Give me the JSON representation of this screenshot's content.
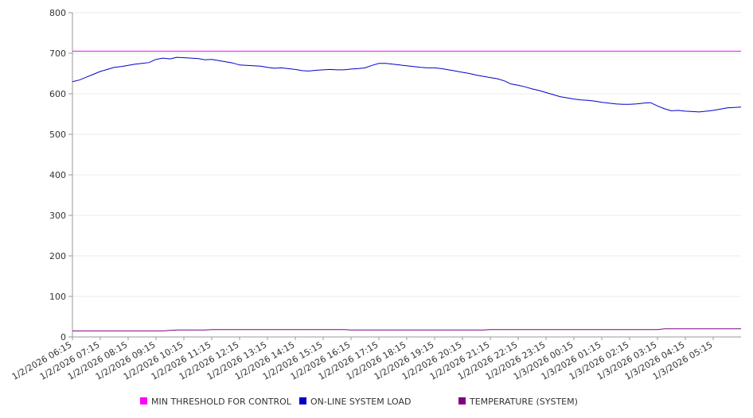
{
  "chart_data": {
    "type": "line",
    "title": "",
    "xlabel": "",
    "ylabel": "",
    "ylim": [
      0,
      800
    ],
    "y_ticks": [
      0,
      100,
      200,
      300,
      400,
      500,
      600,
      700,
      800
    ],
    "grid": true,
    "legend_position": "bottom",
    "x_ticks": [
      "1/2/2026 06:15",
      "1/2/2026 07:15",
      "1/2/2026 08:15",
      "1/2/2026 09:15",
      "1/2/2026 10:15",
      "1/2/2026 11:15",
      "1/2/2026 12:15",
      "1/2/2026 13:15",
      "1/2/2026 14:15",
      "1/2/2026 15:15",
      "1/2/2026 16:15",
      "1/2/2026 17:15",
      "1/2/2026 18:15",
      "1/2/2026 19:15",
      "1/2/2026 20:15",
      "1/2/2026 21:15",
      "1/2/2026 22:15",
      "1/2/2026 23:15",
      "1/3/2026 00:15",
      "1/3/2026 01:15",
      "1/3/2026 02:15",
      "1/3/2026 03:15",
      "1/3/2026 04:15",
      "1/3/2026 05:15"
    ],
    "x_range": [
      "1/2/2026 06:15",
      "1/3/2026 06:15"
    ],
    "series": [
      {
        "name": "MIN THRESHOLD FOR CONTROL",
        "color": "#ff00ff",
        "points": [
          [
            "1/2/2026 06:15",
            705
          ],
          [
            "1/3/2026 06:15",
            705
          ]
        ]
      },
      {
        "name": "ON-LINE SYSTEM LOAD",
        "color": "#0000cc",
        "points": [
          [
            "1/2/2026 06:15",
            630
          ],
          [
            "1/2/2026 06:30",
            634
          ],
          [
            "1/2/2026 06:45",
            641
          ],
          [
            "1/2/2026 07:00",
            648
          ],
          [
            "1/2/2026 07:15",
            655
          ],
          [
            "1/2/2026 07:30",
            660
          ],
          [
            "1/2/2026 07:45",
            665
          ],
          [
            "1/2/2026 08:00",
            667
          ],
          [
            "1/2/2026 08:15",
            670
          ],
          [
            "1/2/2026 08:30",
            673
          ],
          [
            "1/2/2026 08:45",
            675
          ],
          [
            "1/2/2026 09:00",
            677
          ],
          [
            "1/2/2026 09:15",
            685
          ],
          [
            "1/2/2026 09:30",
            688
          ],
          [
            "1/2/2026 09:45",
            686
          ],
          [
            "1/2/2026 10:00",
            690
          ],
          [
            "1/2/2026 10:15",
            689
          ],
          [
            "1/2/2026 10:30",
            688
          ],
          [
            "1/2/2026 10:45",
            687
          ],
          [
            "1/2/2026 11:00",
            684
          ],
          [
            "1/2/2026 11:15",
            685
          ],
          [
            "1/2/2026 11:30",
            682
          ],
          [
            "1/2/2026 11:45",
            679
          ],
          [
            "1/2/2026 12:00",
            676
          ],
          [
            "1/2/2026 12:15",
            671
          ],
          [
            "1/2/2026 12:30",
            670
          ],
          [
            "1/2/2026 12:45",
            669
          ],
          [
            "1/2/2026 13:00",
            668
          ],
          [
            "1/2/2026 13:15",
            665
          ],
          [
            "1/2/2026 13:30",
            663
          ],
          [
            "1/2/2026 13:45",
            664
          ],
          [
            "1/2/2026 14:00",
            662
          ],
          [
            "1/2/2026 14:15",
            660
          ],
          [
            "1/2/2026 14:30",
            657
          ],
          [
            "1/2/2026 14:45",
            656
          ],
          [
            "1/2/2026 15:00",
            658
          ],
          [
            "1/2/2026 15:15",
            659
          ],
          [
            "1/2/2026 15:30",
            660
          ],
          [
            "1/2/2026 15:45",
            659
          ],
          [
            "1/2/2026 16:00",
            659
          ],
          [
            "1/2/2026 16:15",
            661
          ],
          [
            "1/2/2026 16:30",
            662
          ],
          [
            "1/2/2026 16:45",
            664
          ],
          [
            "1/2/2026 17:00",
            670
          ],
          [
            "1/2/2026 17:15",
            675
          ],
          [
            "1/2/2026 17:30",
            675
          ],
          [
            "1/2/2026 17:45",
            673
          ],
          [
            "1/2/2026 18:00",
            671
          ],
          [
            "1/2/2026 18:15",
            669
          ],
          [
            "1/2/2026 18:30",
            667
          ],
          [
            "1/2/2026 18:45",
            665
          ],
          [
            "1/2/2026 19:00",
            664
          ],
          [
            "1/2/2026 19:15",
            664
          ],
          [
            "1/2/2026 19:30",
            662
          ],
          [
            "1/2/2026 19:45",
            659
          ],
          [
            "1/2/2026 20:00",
            656
          ],
          [
            "1/2/2026 20:15",
            653
          ],
          [
            "1/2/2026 20:30",
            650
          ],
          [
            "1/2/2026 20:45",
            646
          ],
          [
            "1/2/2026 21:00",
            643
          ],
          [
            "1/2/2026 21:15",
            640
          ],
          [
            "1/2/2026 21:30",
            637
          ],
          [
            "1/2/2026 21:45",
            632
          ],
          [
            "1/2/2026 22:00",
            624
          ],
          [
            "1/2/2026 22:15",
            621
          ],
          [
            "1/2/2026 22:30",
            617
          ],
          [
            "1/2/2026 22:45",
            612
          ],
          [
            "1/2/2026 23:00",
            608
          ],
          [
            "1/2/2026 23:15",
            603
          ],
          [
            "1/2/2026 23:30",
            598
          ],
          [
            "1/2/2026 23:45",
            593
          ],
          [
            "1/3/2026 00:00",
            590
          ],
          [
            "1/3/2026 00:15",
            587
          ],
          [
            "1/3/2026 00:30",
            585
          ],
          [
            "1/3/2026 00:45",
            584
          ],
          [
            "1/3/2026 01:00",
            582
          ],
          [
            "1/3/2026 01:15",
            579
          ],
          [
            "1/3/2026 01:30",
            577
          ],
          [
            "1/3/2026 01:45",
            575
          ],
          [
            "1/3/2026 02:00",
            574
          ],
          [
            "1/3/2026 02:15",
            574
          ],
          [
            "1/3/2026 02:30",
            575
          ],
          [
            "1/3/2026 02:45",
            577
          ],
          [
            "1/3/2026 03:00",
            578
          ],
          [
            "1/3/2026 03:15",
            570
          ],
          [
            "1/3/2026 03:30",
            563
          ],
          [
            "1/3/2026 03:45",
            558
          ],
          [
            "1/3/2026 04:00",
            559
          ],
          [
            "1/3/2026 04:15",
            557
          ],
          [
            "1/3/2026 04:30",
            556
          ],
          [
            "1/3/2026 04:45",
            555
          ],
          [
            "1/3/2026 05:00",
            557
          ],
          [
            "1/3/2026 05:15",
            559
          ],
          [
            "1/3/2026 05:30",
            562
          ],
          [
            "1/3/2026 05:45",
            565
          ],
          [
            "1/3/2026 06:00",
            566
          ],
          [
            "1/3/2026 06:15",
            567
          ]
        ]
      },
      {
        "name": "TEMPERATURE (SYSTEM)",
        "color": "#800080",
        "points": [
          [
            "1/2/2026 06:15",
            15
          ],
          [
            "1/2/2026 09:30",
            15
          ],
          [
            "1/2/2026 09:45",
            16
          ],
          [
            "1/2/2026 10:00",
            17
          ],
          [
            "1/2/2026 11:00",
            17
          ],
          [
            "1/2/2026 11:15",
            18
          ],
          [
            "1/2/2026 16:00",
            18
          ],
          [
            "1/2/2026 16:15",
            17
          ],
          [
            "1/2/2026 21:00",
            17
          ],
          [
            "1/2/2026 21:15",
            18
          ],
          [
            "1/3/2026 03:15",
            18
          ],
          [
            "1/3/2026 03:30",
            20
          ],
          [
            "1/3/2026 06:15",
            20
          ]
        ]
      }
    ]
  }
}
